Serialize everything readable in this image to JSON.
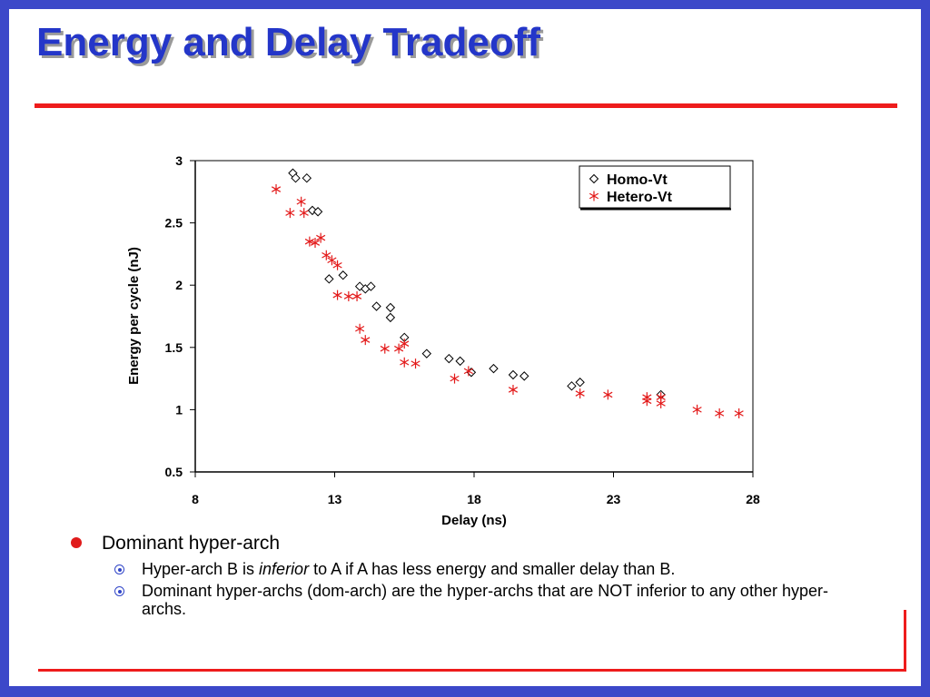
{
  "slide": {
    "title": "Energy and Delay Tradeoff",
    "colors": {
      "frame": "#3c48c9",
      "title": "#2436c9",
      "rule": "#ee1c1c",
      "bullet_dot": "#e01b1b",
      "sub_icon": "#3146c8"
    },
    "bullets": [
      {
        "text": "Dominant hyper-arch",
        "sub": [
          {
            "pre": "Hyper-arch B is ",
            "em": "inferior",
            "post": " to A if A has less energy and smaller delay than B."
          },
          {
            "pre": "Dominant hyper-archs (dom-arch) are the hyper-archs that are NOT inferior to any other hyper-archs.",
            "em": "",
            "post": ""
          }
        ]
      }
    ]
  },
  "chart_data": {
    "type": "scatter",
    "title": "",
    "xlabel": "Delay (ns)",
    "ylabel": "Energy per cycle (nJ)",
    "xlim": [
      8,
      28
    ],
    "ylim": [
      0.5,
      3
    ],
    "xticks": [
      "8",
      "13",
      "18",
      "23",
      "28"
    ],
    "yticks": [
      "0.5",
      "1",
      "1.5",
      "2",
      "2.5",
      "3"
    ],
    "grid": false,
    "legend_position": "top-right",
    "series": [
      {
        "name": "Homo-Vt",
        "marker": "diamond",
        "color": "#000000",
        "points": [
          [
            11.5,
            2.9
          ],
          [
            11.6,
            2.86
          ],
          [
            12.0,
            2.86
          ],
          [
            12.2,
            2.6
          ],
          [
            12.4,
            2.59
          ],
          [
            12.8,
            2.05
          ],
          [
            13.3,
            2.08
          ],
          [
            13.9,
            1.99
          ],
          [
            14.1,
            1.97
          ],
          [
            14.3,
            1.99
          ],
          [
            14.5,
            1.83
          ],
          [
            15.0,
            1.82
          ],
          [
            15.0,
            1.74
          ],
          [
            15.5,
            1.58
          ],
          [
            16.3,
            1.45
          ],
          [
            17.1,
            1.41
          ],
          [
            17.5,
            1.39
          ],
          [
            17.9,
            1.3
          ],
          [
            18.7,
            1.33
          ],
          [
            19.4,
            1.28
          ],
          [
            19.8,
            1.27
          ],
          [
            21.5,
            1.19
          ],
          [
            21.8,
            1.22
          ],
          [
            24.7,
            1.12
          ]
        ]
      },
      {
        "name": "Hetero-Vt",
        "marker": "asterisk",
        "color": "#e31a1a",
        "points": [
          [
            10.9,
            2.77
          ],
          [
            11.4,
            2.58
          ],
          [
            11.8,
            2.67
          ],
          [
            11.9,
            2.58
          ],
          [
            12.1,
            2.35
          ],
          [
            12.3,
            2.34
          ],
          [
            12.5,
            2.38
          ],
          [
            12.7,
            2.24
          ],
          [
            12.9,
            2.2
          ],
          [
            13.1,
            2.16
          ],
          [
            13.1,
            1.92
          ],
          [
            13.5,
            1.91
          ],
          [
            13.8,
            1.91
          ],
          [
            13.9,
            1.65
          ],
          [
            14.1,
            1.56
          ],
          [
            14.8,
            1.49
          ],
          [
            15.3,
            1.49
          ],
          [
            15.5,
            1.53
          ],
          [
            15.5,
            1.38
          ],
          [
            15.9,
            1.37
          ],
          [
            17.3,
            1.25
          ],
          [
            17.8,
            1.31
          ],
          [
            19.4,
            1.16
          ],
          [
            21.8,
            1.13
          ],
          [
            22.8,
            1.12
          ],
          [
            24.2,
            1.1
          ],
          [
            24.2,
            1.07
          ],
          [
            24.7,
            1.1
          ],
          [
            24.7,
            1.05
          ],
          [
            26.0,
            1.0
          ],
          [
            26.8,
            0.97
          ],
          [
            27.5,
            0.97
          ]
        ]
      }
    ]
  }
}
